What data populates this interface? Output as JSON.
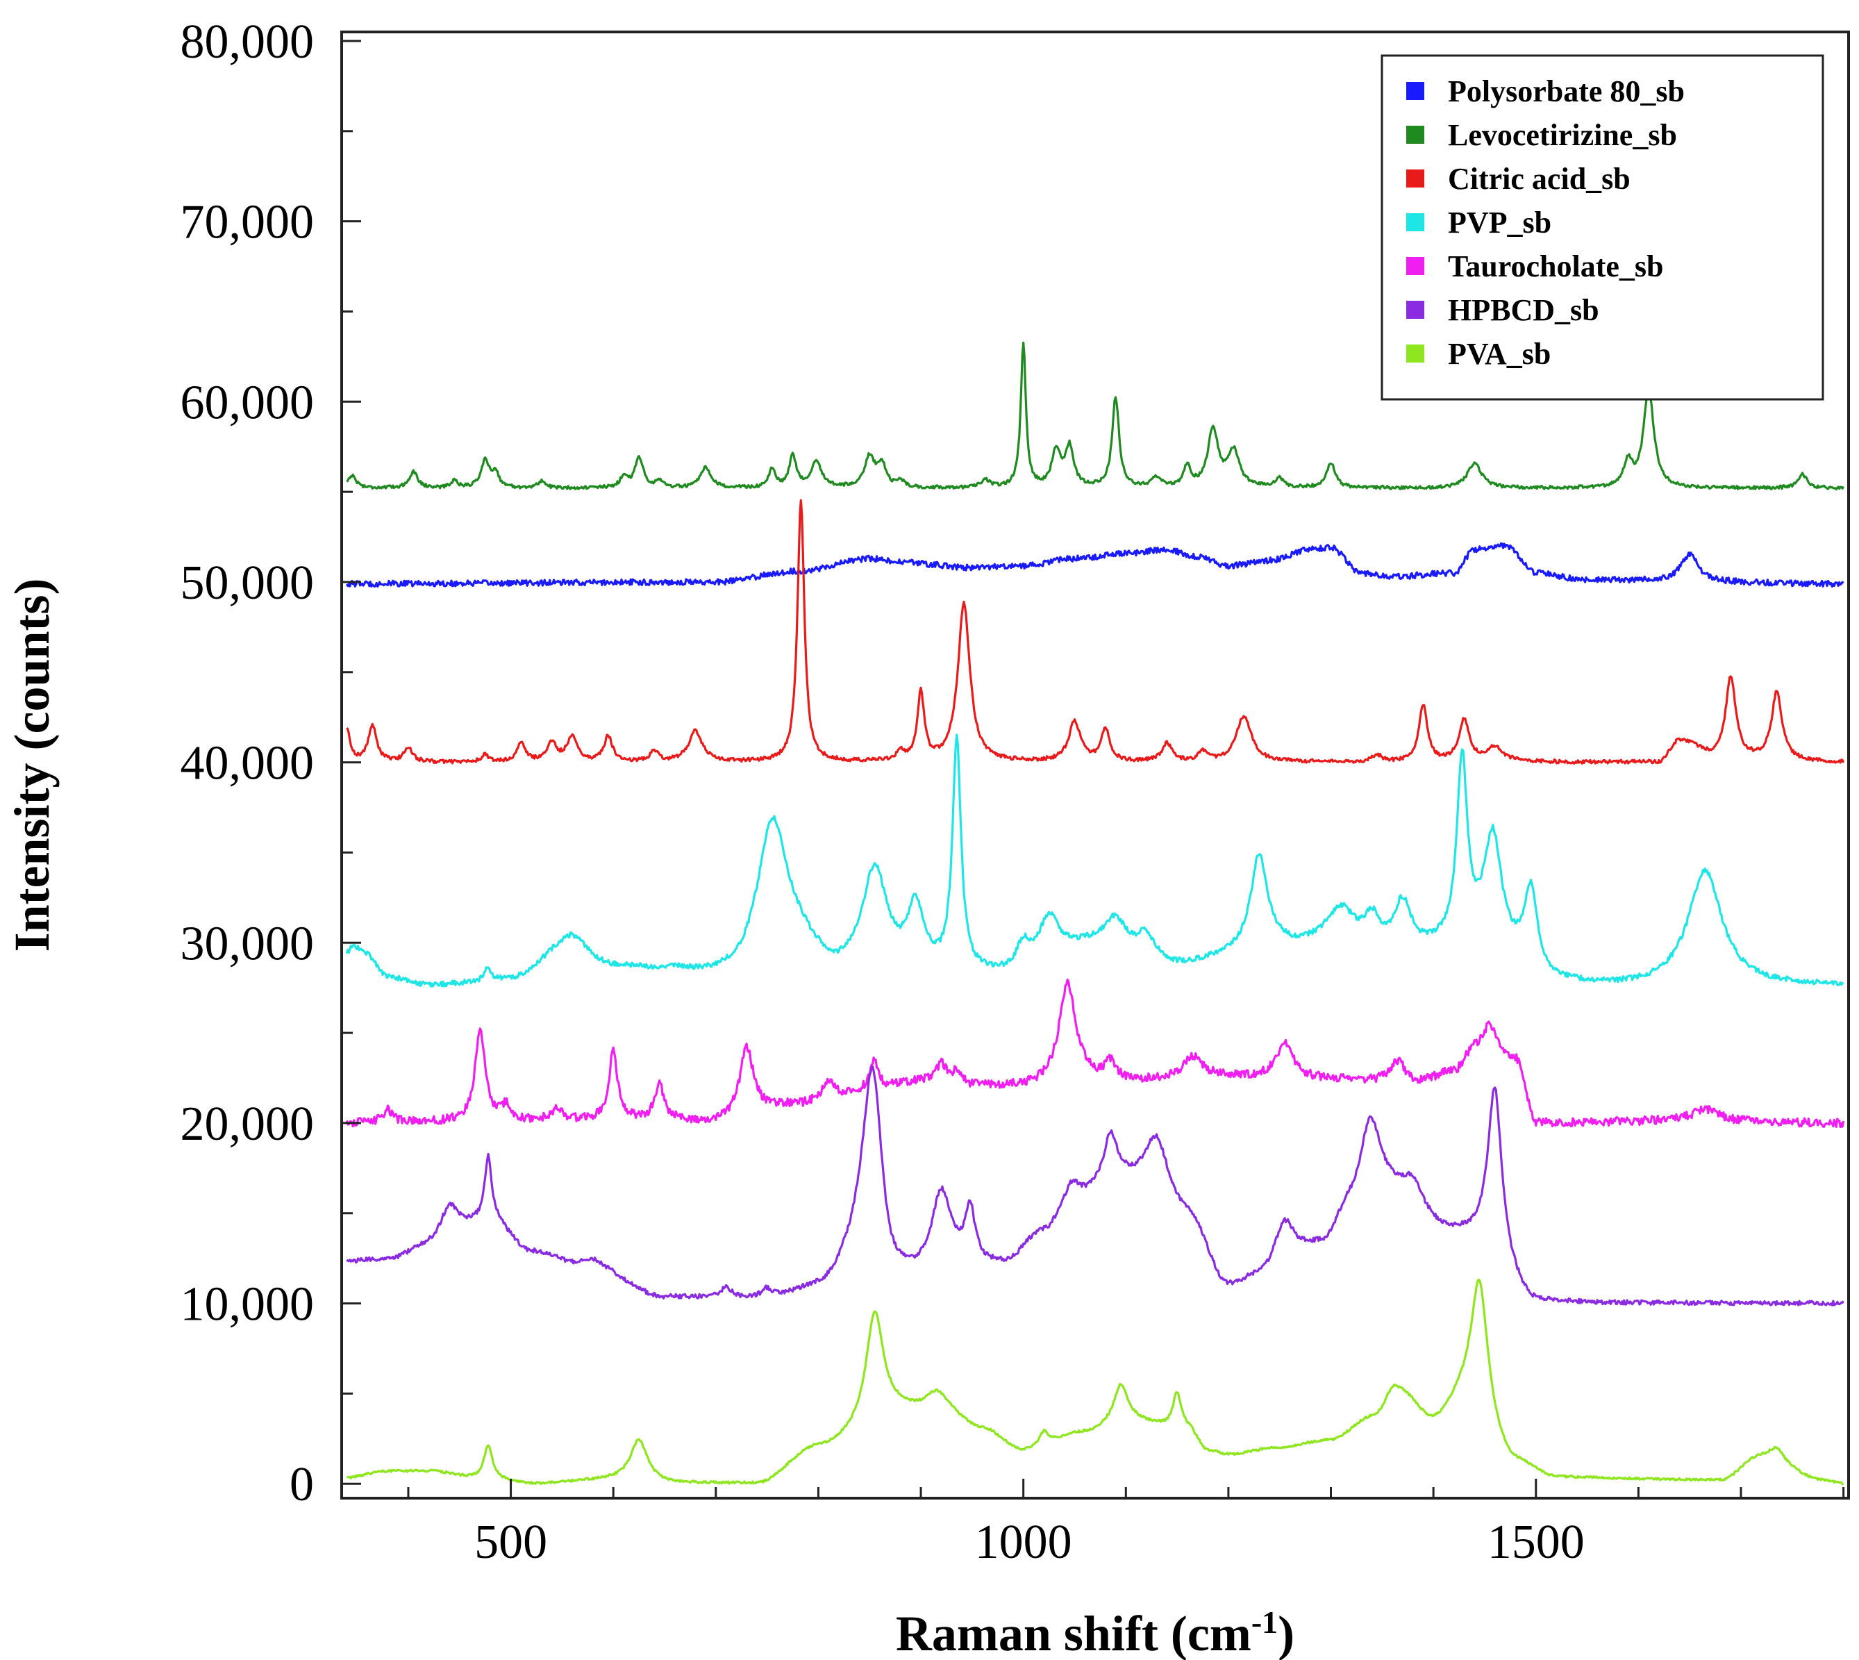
{
  "chart_data": {
    "type": "line",
    "title": "",
    "xlabel": "Raman shift (cm",
    "xlabel_sup": "-1",
    "xlabel_close": ")",
    "ylabel": "Intensity (counts)",
    "xlim": [
      335,
      1805
    ],
    "ylim": [
      -800,
      80500
    ],
    "xticks": [
      500,
      1000,
      1500
    ],
    "xtick_labels": [
      "500",
      "1000",
      "1500"
    ],
    "yticks": [
      0,
      10000,
      20000,
      30000,
      40000,
      50000,
      60000,
      70000,
      80000
    ],
    "ytick_labels": [
      "0",
      "10,000",
      "20,000",
      "30,000",
      "40,000",
      "50,000",
      "60,000",
      "70,000",
      "80,000"
    ],
    "legend_position": "top-right",
    "series": [
      {
        "name": "Polysorbate 80_sb",
        "color": "#1a1aff",
        "baseline": 49900,
        "noise": 160,
        "segments": [
          [
            335,
            49900
          ],
          [
            700,
            50000
          ],
          [
            780,
            50600
          ],
          [
            850,
            51300
          ],
          [
            880,
            51100
          ],
          [
            950,
            50800
          ],
          [
            1000,
            50900
          ],
          [
            1050,
            51300
          ],
          [
            1100,
            51600
          ],
          [
            1140,
            51800
          ],
          [
            1170,
            51400
          ],
          [
            1200,
            50900
          ],
          [
            1240,
            51200
          ],
          [
            1280,
            51800
          ],
          [
            1300,
            51900
          ],
          [
            1330,
            50500
          ],
          [
            1360,
            50300
          ],
          [
            1420,
            50500
          ],
          [
            1440,
            51800
          ],
          [
            1470,
            52000
          ],
          [
            1500,
            50500
          ],
          [
            1550,
            50100
          ],
          [
            1800,
            49900
          ]
        ],
        "peaks": [
          [
            1650,
            1500,
            10
          ]
        ]
      },
      {
        "name": "Levocetirizine_sb",
        "color": "#1f8a1f",
        "baseline": 55200,
        "noise": 90,
        "segments": [
          [
            335,
            55200
          ],
          [
            1800,
            55200
          ]
        ],
        "peaks": [
          [
            345,
            700,
            5
          ],
          [
            405,
            900,
            5
          ],
          [
            445,
            400,
            4
          ],
          [
            475,
            1500,
            5
          ],
          [
            485,
            800,
            4
          ],
          [
            530,
            400,
            4
          ],
          [
            610,
            600,
            4
          ],
          [
            625,
            1700,
            5
          ],
          [
            645,
            400,
            4
          ],
          [
            690,
            1100,
            6
          ],
          [
            755,
            1000,
            4
          ],
          [
            775,
            1800,
            4
          ],
          [
            798,
            1500,
            6
          ],
          [
            850,
            1700,
            6
          ],
          [
            862,
            1200,
            5
          ],
          [
            880,
            400,
            4
          ],
          [
            963,
            400,
            5
          ],
          [
            1000,
            8000,
            3
          ],
          [
            1032,
            2000,
            5
          ],
          [
            1045,
            2200,
            5
          ],
          [
            1090,
            5000,
            4
          ],
          [
            1130,
            500,
            6
          ],
          [
            1160,
            1200,
            4
          ],
          [
            1185,
            3200,
            6
          ],
          [
            1205,
            2000,
            7
          ],
          [
            1250,
            500,
            5
          ],
          [
            1300,
            1400,
            5
          ],
          [
            1440,
            1400,
            8
          ],
          [
            1590,
            1400,
            5
          ],
          [
            1610,
            5500,
            6
          ],
          [
            1760,
            800,
            5
          ]
        ]
      },
      {
        "name": "Citric acid_sb",
        "color": "#e81a1a",
        "baseline": 40000,
        "noise": 100,
        "segments": [
          [
            335,
            40000
          ],
          [
            1620,
            40000
          ],
          [
            1640,
            41200
          ],
          [
            1680,
            40200
          ],
          [
            1800,
            40000
          ]
        ],
        "peaks": [
          [
            340,
            1800,
            4
          ],
          [
            365,
            2000,
            5
          ],
          [
            400,
            800,
            5
          ],
          [
            475,
            400,
            4
          ],
          [
            510,
            1000,
            5
          ],
          [
            540,
            1000,
            6
          ],
          [
            560,
            1400,
            6
          ],
          [
            595,
            1400,
            5
          ],
          [
            640,
            600,
            5
          ],
          [
            680,
            1700,
            8
          ],
          [
            783,
            14500,
            4
          ],
          [
            880,
            600,
            4
          ],
          [
            900,
            3800,
            4
          ],
          [
            942,
            8800,
            7
          ],
          [
            1050,
            2200,
            7
          ],
          [
            1080,
            1800,
            5
          ],
          [
            1140,
            1000,
            6
          ],
          [
            1175,
            500,
            5
          ],
          [
            1215,
            2500,
            9
          ],
          [
            1345,
            400,
            5
          ],
          [
            1390,
            3100,
            5
          ],
          [
            1430,
            2300,
            6
          ],
          [
            1460,
            800,
            10
          ],
          [
            1690,
            4500,
            6
          ],
          [
            1735,
            3800,
            6
          ]
        ]
      },
      {
        "name": "PVP_sb",
        "color": "#1ee6e6",
        "baseline": 27700,
        "noise": 140,
        "segments": [
          [
            335,
            28300
          ],
          [
            360,
            29000
          ],
          [
            380,
            28000
          ],
          [
            420,
            27600
          ],
          [
            500,
            27900
          ],
          [
            550,
            29200
          ],
          [
            600,
            28500
          ],
          [
            650,
            28400
          ],
          [
            700,
            28000
          ],
          [
            720,
            27900
          ],
          [
            780,
            29300
          ],
          [
            820,
            28000
          ],
          [
            980,
            28100
          ],
          [
            1080,
            30000
          ],
          [
            1150,
            28700
          ],
          [
            1220,
            29300
          ],
          [
            1260,
            29700
          ],
          [
            1300,
            30000
          ],
          [
            1380,
            29500
          ],
          [
            1440,
            30000
          ],
          [
            1520,
            27700
          ],
          [
            1580,
            27500
          ],
          [
            1800,
            27600
          ]
        ],
        "peaks": [
          [
            345,
            1200,
            10
          ],
          [
            478,
            800,
            3
          ],
          [
            560,
            1200,
            18
          ],
          [
            755,
            8000,
            18
          ],
          [
            855,
            5800,
            15
          ],
          [
            895,
            3500,
            10
          ],
          [
            935,
            12800,
            5
          ],
          [
            1000,
            1400,
            8
          ],
          [
            1025,
            2400,
            12
          ],
          [
            1090,
            1300,
            10
          ],
          [
            1120,
            1200,
            10
          ],
          [
            1230,
            5400,
            10
          ],
          [
            1310,
            1800,
            15
          ],
          [
            1340,
            1400,
            8
          ],
          [
            1370,
            2600,
            10
          ],
          [
            1428,
            10000,
            6
          ],
          [
            1458,
            6000,
            10
          ],
          [
            1495,
            4500,
            8
          ],
          [
            1665,
            6400,
            20
          ]
        ]
      },
      {
        "name": "Taurocholate_sb",
        "color": "#f01ef0",
        "baseline": 20000,
        "noise": 230,
        "segments": [
          [
            335,
            20000
          ],
          [
            660,
            20200
          ],
          [
            690,
            20000
          ],
          [
            780,
            21000
          ],
          [
            820,
            21500
          ],
          [
            850,
            21800
          ],
          [
            900,
            22300
          ],
          [
            960,
            22000
          ],
          [
            1000,
            22000
          ],
          [
            1070,
            22300
          ],
          [
            1100,
            22300
          ],
          [
            1180,
            22600
          ],
          [
            1230,
            22500
          ],
          [
            1300,
            22400
          ],
          [
            1380,
            22100
          ],
          [
            1420,
            22800
          ],
          [
            1440,
            24000
          ],
          [
            1480,
            23500
          ],
          [
            1500,
            20000
          ],
          [
            1640,
            20100
          ],
          [
            1800,
            20000
          ]
        ],
        "peaks": [
          [
            380,
            700,
            6
          ],
          [
            470,
            5000,
            6
          ],
          [
            495,
            800,
            5
          ],
          [
            545,
            600,
            6
          ],
          [
            600,
            3800,
            5
          ],
          [
            645,
            2000,
            5
          ],
          [
            730,
            3800,
            8
          ],
          [
            810,
            900,
            6
          ],
          [
            855,
            1600,
            5
          ],
          [
            920,
            1000,
            6
          ],
          [
            935,
            700,
            5
          ],
          [
            1043,
            5500,
            10
          ],
          [
            1085,
            1000,
            6
          ],
          [
            1165,
            1100,
            10
          ],
          [
            1255,
            1900,
            10
          ],
          [
            1365,
            1300,
            10
          ],
          [
            1455,
            1600,
            8
          ],
          [
            1665,
            700,
            15
          ]
        ]
      },
      {
        "name": "HPBCD_sb",
        "color": "#8a2be2",
        "baseline": 10000,
        "noise": 120,
        "segments": [
          [
            335,
            12300
          ],
          [
            380,
            12400
          ],
          [
            420,
            13000
          ],
          [
            480,
            14500
          ],
          [
            520,
            12800
          ],
          [
            580,
            11800
          ],
          [
            650,
            10300
          ],
          [
            750,
            10200
          ],
          [
            800,
            10700
          ],
          [
            850,
            13000
          ],
          [
            870,
            10600
          ],
          [
            890,
            11000
          ],
          [
            950,
            11800
          ],
          [
            980,
            12000
          ],
          [
            1020,
            13800
          ],
          [
            1050,
            15500
          ],
          [
            1090,
            16500
          ],
          [
            1160,
            14500
          ],
          [
            1200,
            10800
          ],
          [
            1230,
            11300
          ],
          [
            1260,
            12500
          ],
          [
            1290,
            13000
          ],
          [
            1320,
            15000
          ],
          [
            1350,
            16000
          ],
          [
            1420,
            13800
          ],
          [
            1445,
            13500
          ],
          [
            1500,
            10000
          ],
          [
            1800,
            10000
          ]
        ],
        "peaks": [
          [
            440,
            2000,
            12
          ],
          [
            478,
            3500,
            4
          ],
          [
            580,
            600,
            15
          ],
          [
            710,
            600,
            6
          ],
          [
            750,
            500,
            6
          ],
          [
            853,
            10000,
            12
          ],
          [
            920,
            4500,
            12
          ],
          [
            948,
            3000,
            6
          ],
          [
            1048,
            1000,
            10
          ],
          [
            1085,
            2500,
            8
          ],
          [
            1130,
            3800,
            15
          ],
          [
            1255,
            2000,
            12
          ],
          [
            1338,
            4400,
            12
          ],
          [
            1380,
            1500,
            12
          ],
          [
            1460,
            9000,
            8
          ]
        ]
      },
      {
        "name": "PVA_sb",
        "color": "#8ee61e",
        "baseline": 0,
        "noise": 60,
        "segments": [
          [
            335,
            300
          ],
          [
            380,
            700
          ],
          [
            420,
            700
          ],
          [
            470,
            300
          ],
          [
            520,
            0
          ],
          [
            600,
            200
          ],
          [
            660,
            0
          ],
          [
            740,
            0
          ],
          [
            800,
            2000
          ],
          [
            880,
            4000
          ],
          [
            920,
            4000
          ],
          [
            960,
            3000
          ],
          [
            1000,
            1800
          ],
          [
            1060,
            2800
          ],
          [
            1100,
            3500
          ],
          [
            1160,
            3000
          ],
          [
            1180,
            1800
          ],
          [
            1200,
            1600
          ],
          [
            1250,
            2000
          ],
          [
            1300,
            2400
          ],
          [
            1340,
            3600
          ],
          [
            1370,
            4800
          ],
          [
            1400,
            3400
          ],
          [
            1430,
            4500
          ],
          [
            1480,
            1000
          ],
          [
            1520,
            300
          ],
          [
            1680,
            200
          ],
          [
            1720,
            1500
          ],
          [
            1780,
            200
          ],
          [
            1800,
            0
          ]
        ],
        "peaks": [
          [
            478,
            1800,
            5
          ],
          [
            625,
            2300,
            10
          ],
          [
            855,
            6000,
            10
          ],
          [
            915,
            1000,
            12
          ],
          [
            1020,
            800,
            6
          ],
          [
            1095,
            2000,
            8
          ],
          [
            1150,
            2000,
            5
          ],
          [
            1360,
            800,
            8
          ],
          [
            1445,
            7500,
            10
          ],
          [
            1735,
            700,
            8
          ]
        ]
      }
    ],
    "legend_order": [
      "Polysorbate 80_sb",
      "Levocetirizine_sb",
      "Citric acid_sb",
      "PVP_sb",
      "Taurocholate_sb",
      "HPBCD_sb",
      "PVA_sb"
    ]
  }
}
